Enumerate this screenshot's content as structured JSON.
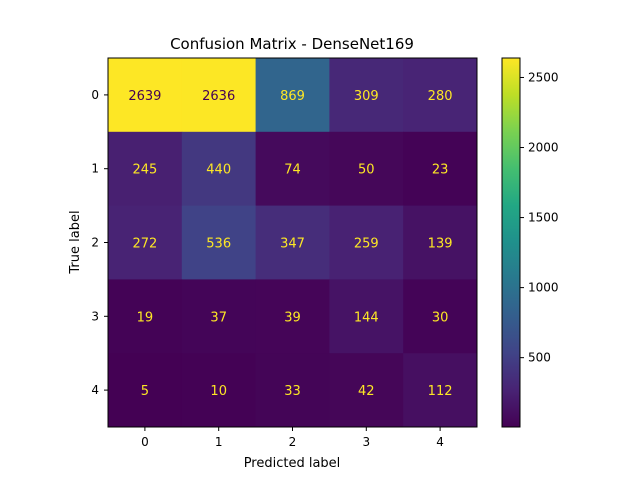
{
  "chart_data": {
    "type": "heatmap",
    "title": "Confusion Matrix - DenseNet169",
    "xlabel": "Predicted label",
    "ylabel": "True label",
    "x_categories": [
      "0",
      "1",
      "2",
      "3",
      "4"
    ],
    "y_categories": [
      "0",
      "1",
      "2",
      "3",
      "4"
    ],
    "matrix": [
      [
        2639,
        2636,
        869,
        309,
        280
      ],
      [
        245,
        440,
        74,
        50,
        23
      ],
      [
        272,
        536,
        347,
        259,
        139
      ],
      [
        19,
        37,
        39,
        144,
        30
      ],
      [
        5,
        10,
        33,
        42,
        112
      ]
    ],
    "colormap": "viridis",
    "value_range": [
      5,
      2639
    ],
    "colorbar_ticks": [
      "500",
      "1000",
      "1500",
      "2000",
      "2500"
    ],
    "text_colors": {
      "low": "#fde725",
      "high": "#440154"
    }
  }
}
